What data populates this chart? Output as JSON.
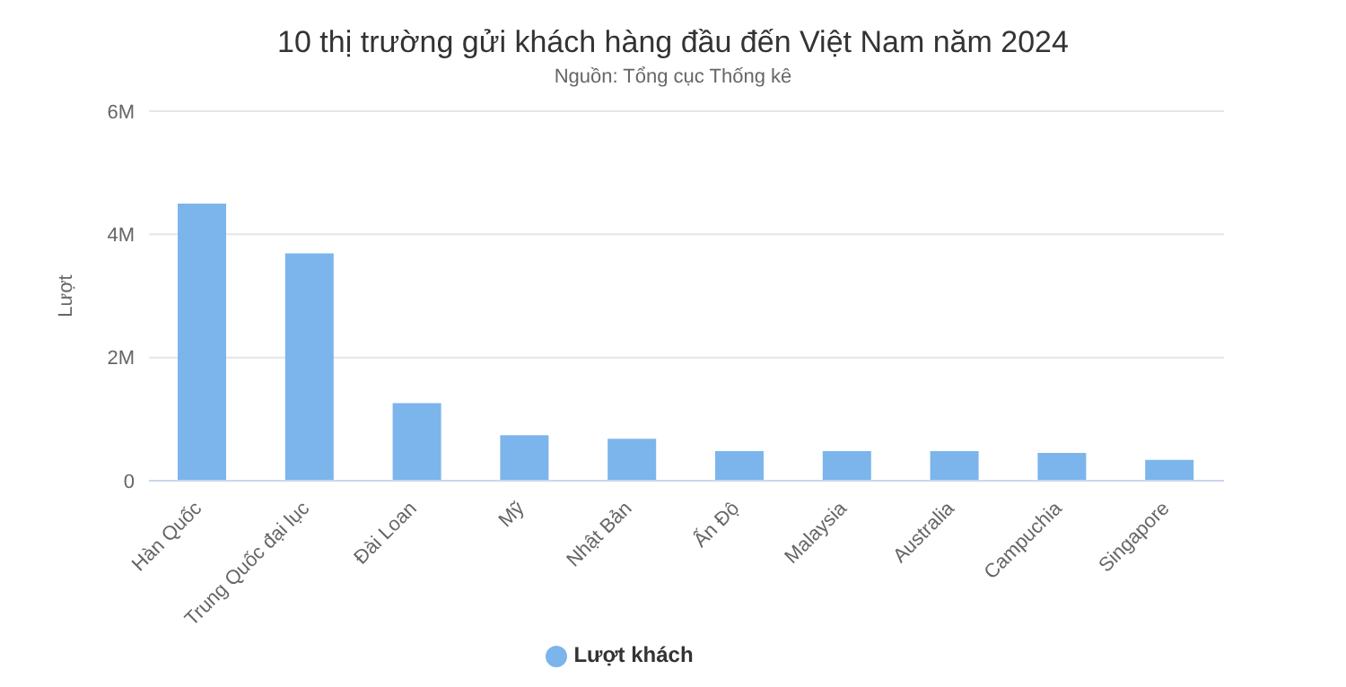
{
  "chart_data": {
    "type": "bar",
    "title": "10 thị trường gửi khách hàng đầu đến Việt Nam năm 2024",
    "subtitle": "Nguồn: Tổng cục Thống kê",
    "ylabel": "Lượt",
    "categories": [
      "Hàn Quốc",
      "Trung Quốc đại lục",
      "Đài Loan",
      "Mỹ",
      "Nhật Bản",
      "Ấn Độ",
      "Malaysia",
      "Australia",
      "Campuchia",
      "Singapore"
    ],
    "series": [
      {
        "name": "Lượt khách",
        "color": "#7cb5ec",
        "values": [
          4500000,
          3690000,
          1260000,
          740000,
          680000,
          480000,
          480000,
          480000,
          450000,
          340000
        ]
      }
    ],
    "ylim": [
      0,
      6000000
    ],
    "yticks": [
      0,
      {
        "value": 2000000,
        "label": "2M"
      },
      {
        "value": 4000000,
        "label": "4M"
      },
      {
        "value": 6000000,
        "label": "6M"
      }
    ],
    "grid": "y",
    "legend": "bottom"
  }
}
